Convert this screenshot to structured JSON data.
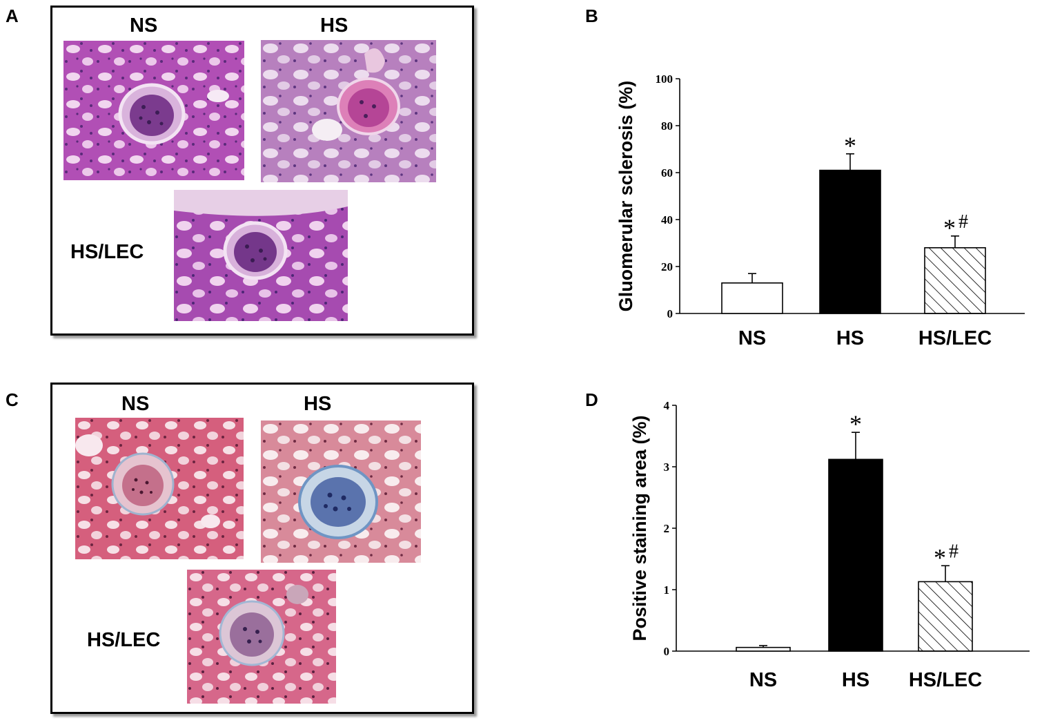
{
  "panels": {
    "A": {
      "letter": "A",
      "tiles": [
        {
          "label": "NS",
          "stain": "pas-normal"
        },
        {
          "label": "HS",
          "stain": "pas-sclerotic"
        },
        {
          "label": "HS/LEC",
          "stain": "pas-treated"
        }
      ]
    },
    "C": {
      "letter": "C",
      "tiles": [
        {
          "label": "NS",
          "stain": "masson-normal"
        },
        {
          "label": "HS",
          "stain": "masson-fibrotic"
        },
        {
          "label": "HS/LEC",
          "stain": "masson-treated"
        }
      ]
    },
    "B": {
      "letter": "B"
    },
    "D": {
      "letter": "D"
    }
  },
  "chart_data": [
    {
      "panel": "B",
      "type": "bar",
      "ylabel": "Gluomerular sclerosis (%)",
      "categories": [
        "NS",
        "HS",
        "HS/LEC"
      ],
      "values": [
        13,
        61,
        28
      ],
      "errors": [
        4,
        7,
        5
      ],
      "fills": [
        "white",
        "black",
        "hatch"
      ],
      "annotations": [
        {
          "category": "HS",
          "symbols": [
            "*"
          ]
        },
        {
          "category": "HS/LEC",
          "symbols": [
            "*",
            "#"
          ]
        }
      ],
      "ylim": [
        0,
        100
      ],
      "yticks": [
        0,
        20,
        40,
        60,
        80,
        100
      ],
      "grid": false,
      "legend": "none"
    },
    {
      "panel": "D",
      "type": "bar",
      "ylabel": "Positive staining area (%)",
      "categories": [
        "NS",
        "HS",
        "HS/LEC"
      ],
      "values": [
        0.06,
        3.12,
        1.13
      ],
      "errors": [
        0.03,
        0.44,
        0.26
      ],
      "fills": [
        "white",
        "black",
        "hatch"
      ],
      "annotations": [
        {
          "category": "HS",
          "symbols": [
            "*"
          ]
        },
        {
          "category": "HS/LEC",
          "symbols": [
            "*",
            "#"
          ]
        }
      ],
      "ylim": [
        0,
        4
      ],
      "yticks": [
        0,
        1,
        2,
        3,
        4
      ],
      "grid": false,
      "legend": "none"
    }
  ]
}
